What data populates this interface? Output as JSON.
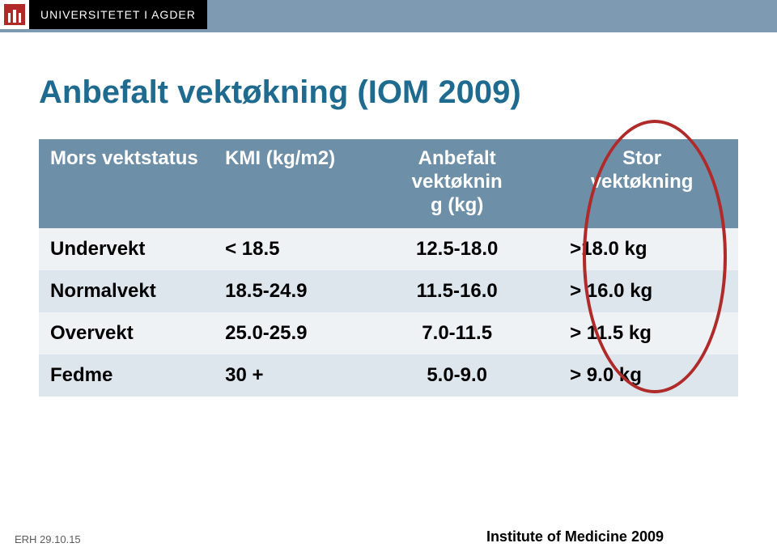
{
  "header": {
    "university_name": "UNIVERSITETET I AGDER",
    "band_color": "#7d9ab2",
    "logo_bg": "#b02a2a"
  },
  "slide": {
    "title": "Anbefalt vektøkning (IOM 2009)",
    "title_color": "#1f6b8f"
  },
  "table": {
    "header_bg": "#6e8fa8",
    "odd_row_bg": "#eef2f5",
    "even_row_bg": "#dde6ed",
    "text_color": "#000000",
    "header_text_color": "#ffffff",
    "font_size_header": 24,
    "font_size_body": 24,
    "columns": {
      "status": "Mors vektstatus",
      "kmi": "KMI (kg/m2)",
      "rec_line1": "Anbefalt",
      "rec_line2": "vektøknin",
      "rec_line3": "g (kg)",
      "big_line1": "Stor",
      "big_line2": "vektøkning"
    },
    "rows": [
      {
        "status": "Undervekt",
        "kmi": "< 18.5",
        "rec": "12.5-18.0",
        "big": ">18.0 kg"
      },
      {
        "status": "Normalvekt",
        "kmi": "18.5-24.9",
        "rec": "11.5-16.0",
        "big": "> 16.0 kg"
      },
      {
        "status": "Overvekt",
        "kmi": "25.0-25.9",
        "rec": "7.0-11.5",
        "big": "> 11.5 kg"
      },
      {
        "status": "Fedme",
        "kmi": "30 +",
        "rec": "5.0-9.0",
        "big": "> 9.0 kg"
      }
    ]
  },
  "annotation": {
    "circle_color": "#b02a2a",
    "circle_stroke": 4
  },
  "footer": {
    "left": "ERH 29.10.15",
    "right": "Institute of Medicine 2009"
  }
}
